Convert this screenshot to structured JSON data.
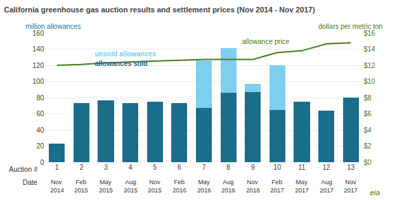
{
  "chart_data": {
    "type": "bar",
    "title": "California greenhouse gas auction results and settlement prices (Nov 2014 - Nov 2017)",
    "ylabel": "million allowances",
    "ylabel_color": "#1a7aaa",
    "y2label": "dollars per metric ton",
    "y2label_color": "#4a7c23",
    "categories": [
      "1",
      "2",
      "3",
      "4",
      "5",
      "6",
      "7",
      "8",
      "9",
      "10",
      "11",
      "12",
      "13"
    ],
    "date_months": [
      "Nov",
      "Feb",
      "May",
      "Aug",
      "Nov",
      "Feb",
      "May",
      "Aug",
      "Nov",
      "Feb",
      "May",
      "Aug",
      "Nov"
    ],
    "date_years": [
      "2014",
      "2015",
      "2015",
      "2015",
      "2015",
      "2016",
      "2016",
      "2016",
      "2016",
      "2017",
      "2017",
      "2017",
      "2017"
    ],
    "x_row_labels": [
      "Auction #",
      "Date"
    ],
    "stacked": true,
    "grid": true,
    "series": [
      {
        "name": "allowances sold",
        "type": "bar",
        "color": "#1a6e8a",
        "values": [
          23,
          73,
          77,
          73,
          75,
          73,
          67,
          86,
          87,
          65,
          75,
          64,
          80
        ]
      },
      {
        "name": "unsold allowances",
        "type": "bar",
        "color": "#7ecef0",
        "values": [
          0,
          0,
          0,
          0,
          0,
          0,
          59,
          55,
          10,
          55,
          0,
          0,
          0
        ]
      },
      {
        "name": "allowance price",
        "type": "line",
        "axis": "y2",
        "color": "#4a7c23",
        "values": [
          12.0,
          12.1,
          12.3,
          12.4,
          12.55,
          12.6,
          12.73,
          12.73,
          12.73,
          13.57,
          13.8,
          14.65,
          14.78
        ]
      }
    ],
    "ylim": [
      0,
      160
    ],
    "yticks": [
      0,
      20,
      40,
      60,
      80,
      100,
      120,
      140,
      160
    ],
    "y2lim": [
      0,
      16
    ],
    "y2ticks": [
      {
        "value": 0,
        "label": "$0"
      },
      {
        "value": 2,
        "label": "$2"
      },
      {
        "value": 4,
        "label": "$4"
      },
      {
        "value": 6,
        "label": "$6"
      },
      {
        "value": 8,
        "label": "$8"
      },
      {
        "value": 10,
        "label": "$10"
      },
      {
        "value": 12,
        "label": "$12"
      },
      {
        "value": 14,
        "label": "$14"
      },
      {
        "value": 16,
        "label": "$16"
      }
    ],
    "footer": "eia",
    "footer_color": "#4a7c23"
  }
}
